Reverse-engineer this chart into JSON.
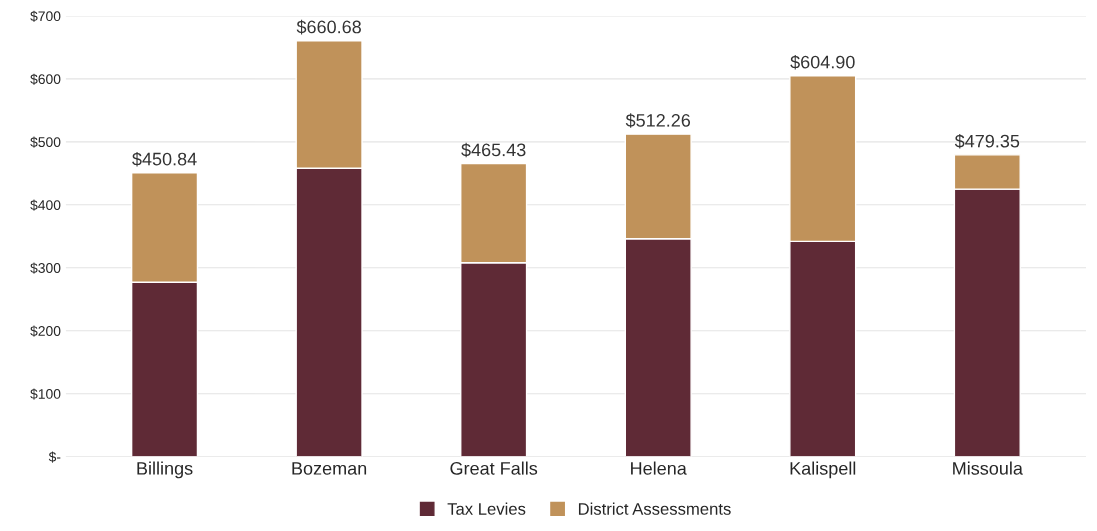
{
  "chart_data": {
    "type": "bar",
    "stacked": true,
    "categories": [
      "Billings",
      "Bozeman",
      "Great Falls",
      "Helena",
      "Kalispell",
      "Missoula"
    ],
    "series": [
      {
        "name": "Tax Levies",
        "color": "#5f2a36",
        "values": [
          277,
          458,
          308,
          346,
          342,
          425
        ]
      },
      {
        "name": "District Assessments",
        "color": "#c0925a",
        "values": [
          173.84,
          202.68,
          157.43,
          166.26,
          262.9,
          54.35
        ]
      }
    ],
    "totals": [
      "$450.84",
      "$660.68",
      "$465.43",
      "$512.26",
      "$604.90",
      "$479.35"
    ],
    "ylim": [
      0,
      700
    ],
    "yticks": [
      {
        "value": 0,
        "label": "$-"
      },
      {
        "value": 100,
        "label": "$100"
      },
      {
        "value": 200,
        "label": "$200"
      },
      {
        "value": 300,
        "label": "$300"
      },
      {
        "value": 400,
        "label": "$400"
      },
      {
        "value": 500,
        "label": "$500"
      },
      {
        "value": 600,
        "label": "$600"
      },
      {
        "value": 700,
        "label": "$700"
      }
    ],
    "grid": "y",
    "legend": "bottom"
  }
}
